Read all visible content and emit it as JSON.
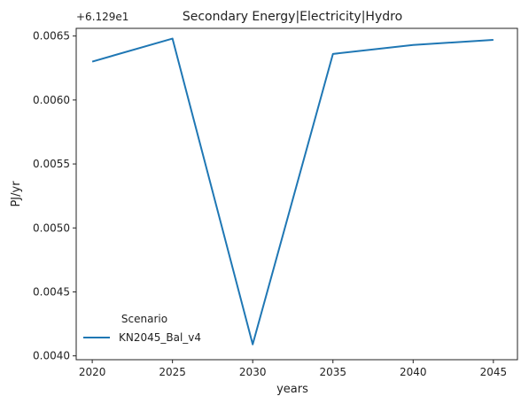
{
  "chart_data": {
    "type": "line",
    "title": "Secondary Energy|Electricity|Hydro",
    "xlabel": "years",
    "ylabel": "PJ/yr",
    "offset_label": "+6.129e1",
    "x": [
      2020,
      2025,
      2030,
      2035,
      2040,
      2045
    ],
    "x_ticks": [
      "2020",
      "2025",
      "2030",
      "2035",
      "2040",
      "2045"
    ],
    "y_ticks": [
      "0.0040",
      "0.0045",
      "0.0050",
      "0.0055",
      "0.0060",
      "0.0065"
    ],
    "y_tick_values": [
      0.004,
      0.0045,
      0.005,
      0.0055,
      0.006,
      0.0065
    ],
    "xlim": [
      2019.0,
      2046.5
    ],
    "ylim": [
      0.00397,
      0.00656
    ],
    "series": [
      {
        "name": "KN2045_Bal_v4",
        "color": "#1f77b4",
        "values": [
          0.0063,
          0.00648,
          0.00409,
          0.00636,
          0.00643,
          0.00647
        ]
      }
    ],
    "legend": {
      "title": "Scenario",
      "placement": "lower-left"
    },
    "grid": false
  }
}
